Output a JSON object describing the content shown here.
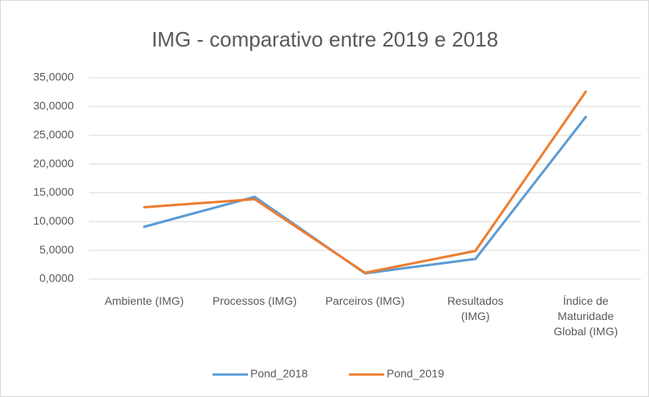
{
  "chart_data": {
    "type": "line",
    "title": "IMG - comparativo entre 2019 e 2018",
    "categories": [
      "Ambiente (IMG)",
      "Processos (IMG)",
      "Parceiros (IMG)",
      "Resultados (IMG)",
      "Índice de Maturidade Global (IMG)"
    ],
    "series": [
      {
        "name": "Pond_2018",
        "color": "#5b9bd5",
        "values": [
          9.1,
          14.3,
          1.0,
          3.5,
          28.2
        ]
      },
      {
        "name": "Pond_2019",
        "color": "#ed7d31",
        "values": [
          12.5,
          13.9,
          1.1,
          4.9,
          32.6
        ]
      }
    ],
    "ylim": [
      0,
      35
    ],
    "yticks": [
      {
        "value": 0,
        "label": "0,0000"
      },
      {
        "value": 5,
        "label": "5,0000"
      },
      {
        "value": 10,
        "label": "10,0000"
      },
      {
        "value": 15,
        "label": "15,0000"
      },
      {
        "value": 20,
        "label": "20,0000"
      },
      {
        "value": 25,
        "label": "25,0000"
      },
      {
        "value": 30,
        "label": "30,0000"
      },
      {
        "value": 35,
        "label": "35,0000"
      }
    ],
    "grid": true,
    "legend": "bottom"
  }
}
